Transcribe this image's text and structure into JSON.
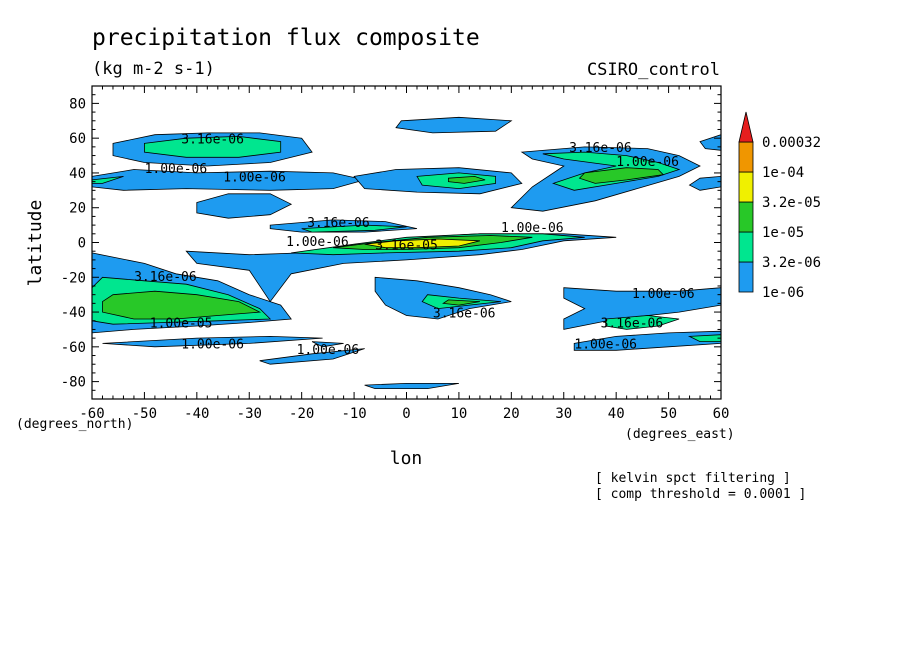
{
  "chart_data": {
    "type": "contour",
    "title": "precipitation flux composite",
    "subtitle": "(kg m-2 s-1)",
    "model": "CSIRO_control",
    "xlabel": "lon",
    "ylabel": "latitude",
    "x_unit_label": "(degrees_east)",
    "y_unit_label": "(degrees_north)",
    "xlim": [
      -60,
      60
    ],
    "ylim": [
      -90,
      90
    ],
    "x_ticks": [
      -60,
      -50,
      -40,
      -30,
      -20,
      -10,
      0,
      10,
      20,
      30,
      40,
      50,
      60
    ],
    "y_ticks": [
      -80,
      -60,
      -40,
      -20,
      0,
      20,
      40,
      60,
      80
    ],
    "notes": [
      "[ kelvin spct filtering ]",
      "[ comp threshold = 0.0001 ]"
    ],
    "colorbar": {
      "levels": [
        "1e-06",
        "3.2e-06",
        "1e-05",
        "3.2e-05",
        "1e-04",
        "0.00032"
      ],
      "colors": [
        "#1e9bf0",
        "#00e68f",
        "#28c828",
        "#f0f000",
        "#f09600",
        "#e61e1e"
      ]
    },
    "regions": [
      {
        "level": 0,
        "points": [
          [
            -56,
            57
          ],
          [
            -48,
            62
          ],
          [
            -38,
            63
          ],
          [
            -28,
            63
          ],
          [
            -20,
            60
          ],
          [
            -18,
            52
          ],
          [
            -26,
            46
          ],
          [
            -38,
            44
          ],
          [
            -50,
            46
          ],
          [
            -56,
            50
          ]
        ]
      },
      {
        "level": 1,
        "points": [
          [
            -50,
            57
          ],
          [
            -42,
            60
          ],
          [
            -32,
            61
          ],
          [
            -24,
            58
          ],
          [
            -24,
            52
          ],
          [
            -32,
            49
          ],
          [
            -42,
            49
          ],
          [
            -50,
            52
          ]
        ]
      },
      {
        "level": 0,
        "points": [
          [
            -60,
            38
          ],
          [
            -52,
            42
          ],
          [
            -40,
            40
          ],
          [
            -26,
            41
          ],
          [
            -14,
            40
          ],
          [
            -8,
            36
          ],
          [
            -14,
            31
          ],
          [
            -26,
            30
          ],
          [
            -42,
            31
          ],
          [
            -54,
            30
          ],
          [
            -60,
            32
          ]
        ]
      },
      {
        "level": 1,
        "points": [
          [
            -60,
            36
          ],
          [
            -54,
            38
          ],
          [
            -58,
            34
          ],
          [
            -60,
            34
          ]
        ]
      },
      {
        "level": 0,
        "points": [
          [
            -40,
            23
          ],
          [
            -34,
            28
          ],
          [
            -26,
            28
          ],
          [
            -22,
            22
          ],
          [
            -26,
            16
          ],
          [
            -34,
            14
          ],
          [
            -40,
            17
          ]
        ]
      },
      {
        "level": 0,
        "points": [
          [
            -10,
            38
          ],
          [
            -2,
            42
          ],
          [
            10,
            43
          ],
          [
            20,
            40
          ],
          [
            22,
            34
          ],
          [
            14,
            28
          ],
          [
            2,
            29
          ],
          [
            -8,
            31
          ]
        ]
      },
      {
        "level": 1,
        "points": [
          [
            2,
            38
          ],
          [
            10,
            40
          ],
          [
            17,
            38
          ],
          [
            17,
            34
          ],
          [
            10,
            31
          ],
          [
            3,
            33
          ]
        ]
      },
      {
        "level": 2,
        "points": [
          [
            8,
            37
          ],
          [
            13,
            38
          ],
          [
            15,
            36
          ],
          [
            11,
            34
          ],
          [
            8,
            35
          ]
        ]
      },
      {
        "level": 0,
        "points": [
          [
            -1,
            70
          ],
          [
            10,
            72
          ],
          [
            20,
            70
          ],
          [
            17,
            64
          ],
          [
            5,
            63
          ],
          [
            -2,
            66
          ]
        ]
      },
      {
        "level": 0,
        "points": [
          [
            22,
            52
          ],
          [
            34,
            55
          ],
          [
            46,
            54
          ],
          [
            52,
            50
          ],
          [
            56,
            44
          ],
          [
            52,
            38
          ],
          [
            44,
            31
          ],
          [
            36,
            24
          ],
          [
            26,
            18
          ],
          [
            20,
            20
          ],
          [
            24,
            32
          ],
          [
            30,
            44
          ],
          [
            24,
            48
          ]
        ]
      },
      {
        "level": 1,
        "points": [
          [
            26,
            51
          ],
          [
            34,
            52
          ],
          [
            42,
            50
          ],
          [
            48,
            46
          ],
          [
            52,
            42
          ],
          [
            48,
            38
          ],
          [
            40,
            34
          ],
          [
            32,
            30
          ],
          [
            28,
            34
          ],
          [
            34,
            40
          ],
          [
            40,
            44
          ],
          [
            30,
            48
          ]
        ]
      },
      {
        "level": 2,
        "points": [
          [
            34,
            40
          ],
          [
            42,
            43
          ],
          [
            48,
            42
          ],
          [
            49,
            39
          ],
          [
            42,
            36
          ],
          [
            36,
            34
          ],
          [
            33,
            37
          ]
        ]
      },
      {
        "level": 0,
        "points": [
          [
            54,
            33
          ],
          [
            56,
            37
          ],
          [
            60,
            38
          ],
          [
            60,
            32
          ],
          [
            56,
            30
          ]
        ]
      },
      {
        "level": 0,
        "points": [
          [
            56,
            58
          ],
          [
            60,
            62
          ],
          [
            60,
            53
          ],
          [
            57,
            54
          ]
        ]
      },
      {
        "level": 0,
        "points": [
          [
            -42,
            -5
          ],
          [
            -30,
            -7
          ],
          [
            -20,
            -6
          ],
          [
            -8,
            -1
          ],
          [
            2,
            3
          ],
          [
            14,
            5
          ],
          [
            30,
            5
          ],
          [
            40,
            3
          ],
          [
            30,
            1
          ],
          [
            22,
            -4
          ],
          [
            14,
            -7
          ],
          [
            0,
            -10
          ],
          [
            -12,
            -12
          ],
          [
            -22,
            -18
          ],
          [
            -26,
            -34
          ],
          [
            -30,
            -16
          ],
          [
            -40,
            -12
          ]
        ]
      },
      {
        "level": 0,
        "points": [
          [
            -26,
            10
          ],
          [
            -14,
            13
          ],
          [
            -4,
            12
          ],
          [
            2,
            8
          ],
          [
            -8,
            6
          ],
          [
            -20,
            6
          ],
          [
            -26,
            8
          ]
        ]
      },
      {
        "level": 1,
        "points": [
          [
            -20,
            8
          ],
          [
            -8,
            10
          ],
          [
            0,
            9
          ],
          [
            -6,
            7
          ],
          [
            -18,
            6
          ]
        ]
      },
      {
        "level": 1,
        "points": [
          [
            -22,
            -6
          ],
          [
            -10,
            -1
          ],
          [
            0,
            3
          ],
          [
            14,
            5
          ],
          [
            26,
            5
          ],
          [
            34,
            3
          ],
          [
            26,
            1
          ],
          [
            20,
            -3
          ],
          [
            10,
            -5
          ],
          [
            -4,
            -6
          ],
          [
            -14,
            -7
          ]
        ]
      },
      {
        "level": 2,
        "points": [
          [
            -14,
            -3
          ],
          [
            -6,
            0
          ],
          [
            4,
            3
          ],
          [
            16,
            4
          ],
          [
            24,
            3
          ],
          [
            18,
            0
          ],
          [
            10,
            -3
          ],
          [
            0,
            -4
          ],
          [
            -8,
            -4
          ]
        ]
      },
      {
        "level": 3,
        "points": [
          [
            -8,
            -1
          ],
          [
            -2,
            1
          ],
          [
            6,
            2
          ],
          [
            14,
            1
          ],
          [
            10,
            -2
          ],
          [
            2,
            -3
          ],
          [
            -4,
            -3
          ]
        ]
      },
      {
        "level": 0,
        "points": [
          [
            -60,
            -6
          ],
          [
            -50,
            -12
          ],
          [
            -44,
            -18
          ],
          [
            -36,
            -22
          ],
          [
            -30,
            -30
          ],
          [
            -24,
            -36
          ],
          [
            -22,
            -44
          ],
          [
            -30,
            -46
          ],
          [
            -40,
            -48
          ],
          [
            -52,
            -50
          ],
          [
            -60,
            -52
          ]
        ]
      },
      {
        "level": 1,
        "points": [
          [
            -58,
            -20
          ],
          [
            -50,
            -22
          ],
          [
            -42,
            -24
          ],
          [
            -34,
            -30
          ],
          [
            -28,
            -38
          ],
          [
            -26,
            -44
          ],
          [
            -36,
            -45
          ],
          [
            -46,
            -46
          ],
          [
            -56,
            -47
          ],
          [
            -60,
            -45
          ],
          [
            -60,
            -26
          ]
        ]
      },
      {
        "level": 2,
        "points": [
          [
            -56,
            -30
          ],
          [
            -48,
            -28
          ],
          [
            -40,
            -30
          ],
          [
            -32,
            -34
          ],
          [
            -28,
            -40
          ],
          [
            -36,
            -42
          ],
          [
            -44,
            -44
          ],
          [
            -52,
            -44
          ],
          [
            -58,
            -40
          ],
          [
            -58,
            -34
          ]
        ]
      },
      {
        "level": 0,
        "points": [
          [
            -6,
            -20
          ],
          [
            2,
            -22
          ],
          [
            10,
            -26
          ],
          [
            16,
            -30
          ],
          [
            20,
            -34
          ],
          [
            12,
            -38
          ],
          [
            6,
            -44
          ],
          [
            0,
            -42
          ],
          [
            -4,
            -36
          ],
          [
            -6,
            -28
          ]
        ]
      },
      {
        "level": 1,
        "points": [
          [
            4,
            -30
          ],
          [
            10,
            -32
          ],
          [
            18,
            -34
          ],
          [
            12,
            -36
          ],
          [
            6,
            -38
          ],
          [
            3,
            -34
          ]
        ]
      },
      {
        "level": 2,
        "points": [
          [
            8,
            -33
          ],
          [
            14,
            -34
          ],
          [
            10,
            -36
          ],
          [
            7,
            -35
          ]
        ]
      },
      {
        "level": 0,
        "points": [
          [
            -58,
            -58
          ],
          [
            -40,
            -55
          ],
          [
            -26,
            -54
          ],
          [
            -16,
            -55
          ],
          [
            -30,
            -58
          ],
          [
            -48,
            -60
          ]
        ]
      },
      {
        "level": 0,
        "points": [
          [
            -28,
            -68
          ],
          [
            -18,
            -64
          ],
          [
            -8,
            -61
          ],
          [
            -14,
            -67
          ],
          [
            -26,
            -70
          ]
        ]
      },
      {
        "level": 0,
        "points": [
          [
            -18,
            -57
          ],
          [
            -12,
            -58
          ],
          [
            -16,
            -60
          ]
        ]
      },
      {
        "level": 0,
        "points": [
          [
            -8,
            -82
          ],
          [
            0,
            -81
          ],
          [
            10,
            -81
          ],
          [
            4,
            -84
          ],
          [
            -6,
            -84
          ]
        ]
      },
      {
        "level": 0,
        "points": [
          [
            30,
            -26
          ],
          [
            40,
            -28
          ],
          [
            52,
            -28
          ],
          [
            60,
            -26
          ],
          [
            60,
            -36
          ],
          [
            52,
            -40
          ],
          [
            40,
            -44
          ],
          [
            30,
            -50
          ],
          [
            30,
            -44
          ],
          [
            34,
            -38
          ],
          [
            30,
            -32
          ]
        ]
      },
      {
        "level": 1,
        "points": [
          [
            38,
            -44
          ],
          [
            46,
            -42
          ],
          [
            52,
            -44
          ],
          [
            48,
            -48
          ],
          [
            42,
            -50
          ],
          [
            38,
            -48
          ]
        ]
      },
      {
        "level": 0,
        "points": [
          [
            32,
            -58
          ],
          [
            40,
            -54
          ],
          [
            50,
            -52
          ],
          [
            60,
            -51
          ],
          [
            60,
            -58
          ],
          [
            50,
            -60
          ],
          [
            40,
            -62
          ],
          [
            32,
            -62
          ]
        ]
      },
      {
        "level": 1,
        "points": [
          [
            54,
            -54
          ],
          [
            60,
            -53
          ],
          [
            60,
            -57
          ],
          [
            56,
            -57
          ]
        ]
      }
    ],
    "contour_labels": [
      {
        "text": "3.16e-06",
        "x": -37,
        "y": 57
      },
      {
        "text": "1.00e-06",
        "x": -44,
        "y": 40
      },
      {
        "text": "1.00e-06",
        "x": -29,
        "y": 35
      },
      {
        "text": "3.16e-06",
        "x": 37,
        "y": 52
      },
      {
        "text": "1.00e-06",
        "x": 46,
        "y": 44
      },
      {
        "text": "3.16e-06",
        "x": -13,
        "y": 9
      },
      {
        "text": "1.00e-06",
        "x": -17,
        "y": -2
      },
      {
        "text": "3.16e-05",
        "x": 0,
        "y": -4
      },
      {
        "text": "1.00e-06",
        "x": 24,
        "y": 6
      },
      {
        "text": "3.16e-06",
        "x": -46,
        "y": -22
      },
      {
        "text": "1.00e-05",
        "x": -43,
        "y": -49
      },
      {
        "text": "1.00e-06",
        "x": -37,
        "y": -61
      },
      {
        "text": "1.00e-06",
        "x": -15,
        "y": -64
      },
      {
        "text": "3.16e-06",
        "x": 11,
        "y": -43
      },
      {
        "text": "1.00e-06",
        "x": 49,
        "y": -32
      },
      {
        "text": "3.16e-06",
        "x": 43,
        "y": -49
      },
      {
        "text": "1.00e-06",
        "x": 38,
        "y": -61
      }
    ]
  }
}
